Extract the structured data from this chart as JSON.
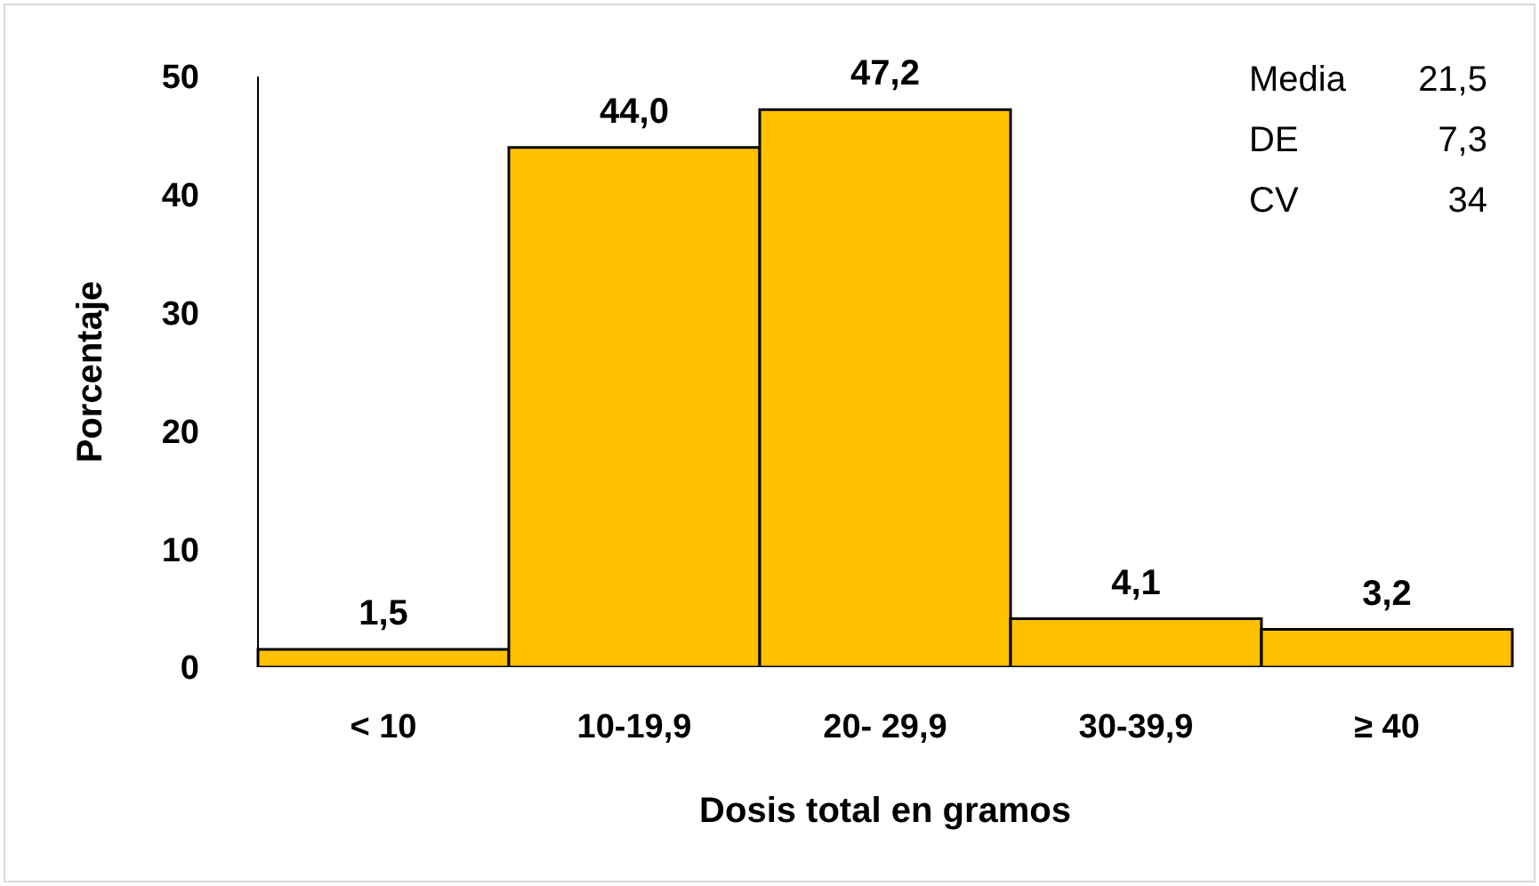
{
  "chart_data": {
    "type": "bar",
    "categories": [
      "< 10",
      "10-19,9",
      "20- 29,9",
      "30-39,9",
      "≥ 40"
    ],
    "values": [
      1.5,
      44.0,
      47.2,
      4.1,
      3.2
    ],
    "value_labels": [
      "1,5",
      "44,0",
      "47,2",
      "4,1",
      "3,2"
    ],
    "color": "#ffc000",
    "xlabel": "Dosis total en gramos",
    "ylabel": "Porcentaje",
    "ylim": [
      0,
      50
    ],
    "yticks": [
      0,
      10,
      20,
      30,
      40,
      50
    ],
    "grid": false,
    "annotations": [
      "Media 21,5",
      "DE 7,3",
      "CV 34"
    ]
  }
}
